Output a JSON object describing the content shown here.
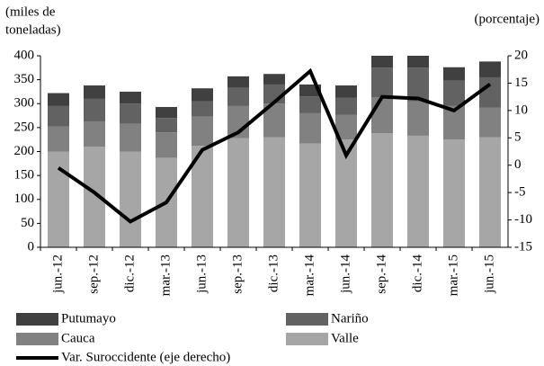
{
  "chart_data": {
    "type": "bar",
    "y_label_lines": [
      "(miles de",
      "toneladas)"
    ],
    "y2_label": "(porcentaje)",
    "categories": [
      "jun.-12",
      "sep.-12",
      "dic.-12",
      "mar.-13",
      "jun.-13",
      "sep.-13",
      "dic.-13",
      "mar.-14",
      "jun.-14",
      "sep.-14",
      "dic.-14",
      "mar.-15",
      "jun.-15"
    ],
    "series": [
      {
        "name": "Putumayo",
        "type": "bar",
        "color": "#404040",
        "values": [
          27,
          28,
          25,
          23,
          27,
          24,
          22,
          25,
          26,
          25,
          25,
          28,
          33
        ]
      },
      {
        "name": "Nariño",
        "type": "bar",
        "color": "#626262",
        "values": [
          43,
          47,
          42,
          30,
          32,
          38,
          40,
          35,
          35,
          62,
          70,
          53,
          63
        ]
      },
      {
        "name": "Cauca",
        "type": "bar",
        "color": "#818181",
        "values": [
          52,
          53,
          58,
          53,
          61,
          67,
          70,
          63,
          52,
          75,
          72,
          70,
          62
        ]
      },
      {
        "name": "Valle",
        "type": "bar",
        "color": "#a6a6a6",
        "values": [
          200,
          210,
          200,
          187,
          212,
          228,
          230,
          217,
          225,
          238,
          233,
          225,
          230
        ]
      },
      {
        "name": "Var. Suroccidente (eje derecho)",
        "type": "line",
        "axis": "y2",
        "color": "#000000",
        "values": [
          -0.5,
          -5,
          -10.3,
          -6.8,
          2.8,
          6,
          11.5,
          17.2,
          1.8,
          12.5,
          12.2,
          10,
          14.8
        ]
      }
    ],
    "ylim": [
      0,
      400
    ],
    "yticks": [
      0,
      50,
      100,
      150,
      200,
      250,
      300,
      350,
      400
    ],
    "y2lim": [
      -15,
      20
    ],
    "y2ticks": [
      -15,
      -10,
      -5,
      0,
      5,
      10,
      15,
      20
    ],
    "stacked": true
  }
}
